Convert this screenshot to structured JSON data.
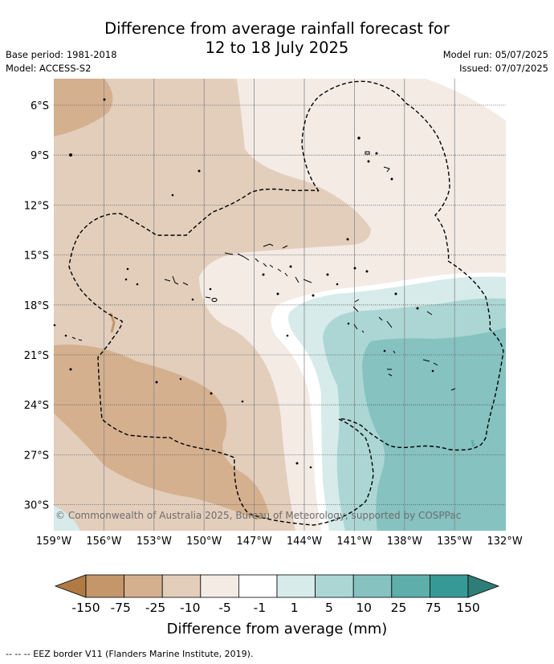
{
  "title_line1": "Difference from average rainfall forecast for",
  "title_line2": "12 to 18 July 2025",
  "base_period": "Base period: 1981-2018",
  "model": "Model: ACCESS-S2",
  "model_run": "Model run: 05/07/2025",
  "issued": "Issued: 07/07/2025",
  "copyright": "© Commonwealth of Australia 2025, Bureau of Meteorology, supported by COSPPac",
  "lat_labels": [
    "6°S",
    "9°S",
    "12°S",
    "15°S",
    "18°S",
    "21°S",
    "24°S",
    "27°S",
    "30°S"
  ],
  "lon_labels": [
    "159°W",
    "156°W",
    "153°W",
    "150°W",
    "147°W",
    "144°W",
    "141°W",
    "138°W",
    "135°W",
    "132°W"
  ],
  "colorbar": {
    "ticks": [
      "-150",
      "-75",
      "-25",
      "-10",
      "-5",
      "-1",
      "1",
      "5",
      "10",
      "25",
      "75",
      "150"
    ],
    "colors": [
      "#b17a45",
      "#c4966a",
      "#d4b08f",
      "#e3cebc",
      "#f4ebe5",
      "#ffffff",
      "#d6ebea",
      "#acd6d4",
      "#85c2c0",
      "#5eaeab",
      "#369995",
      "#2f7d79"
    ],
    "title": "Difference from average (mm)"
  },
  "footer": "-- -- -- EEZ border V11 (Flanders Marine Institute, 2019)."
}
